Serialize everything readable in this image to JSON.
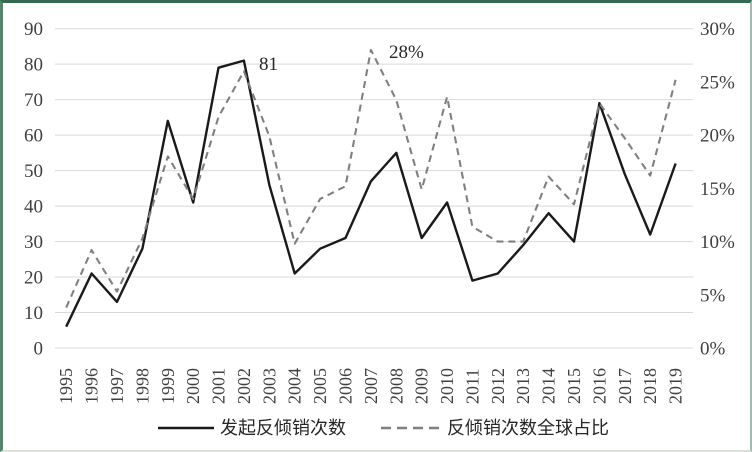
{
  "window": {
    "border_color": "#2f6b51",
    "background": "#ffffff"
  },
  "chart_data": {
    "type": "line",
    "title": "",
    "x_categories": [
      "1995",
      "1996",
      "1997",
      "1998",
      "1999",
      "2000",
      "2001",
      "2002",
      "2003",
      "2004",
      "2005",
      "2006",
      "2007",
      "2008",
      "2009",
      "2010",
      "2011",
      "2012",
      "2013",
      "2014",
      "2015",
      "2016",
      "2017",
      "2018",
      "2019"
    ],
    "series": [
      {
        "name": "发起反倾销次数",
        "axis": "left",
        "line_style": "solid",
        "color": "#1a1a1a",
        "values": [
          6,
          21,
          13,
          28,
          64,
          41,
          79,
          81,
          46,
          21,
          28,
          31,
          47,
          55,
          31,
          41,
          19,
          21,
          29,
          38,
          30,
          69,
          49,
          32,
          52
        ]
      },
      {
        "name": "反倾销次数全球占比",
        "axis": "right",
        "line_style": "dashed",
        "color": "#808080",
        "values_percent": [
          3.8,
          9.2,
          5.3,
          10.3,
          18,
          14,
          21.7,
          26,
          19.9,
          9.8,
          14,
          15.2,
          28,
          23.3,
          14.9,
          23.6,
          11.4,
          10,
          10,
          16.1,
          13.5,
          23,
          19.7,
          16.2,
          25.2
        ]
      }
    ],
    "left_axis": {
      "min": 0,
      "max": 90,
      "step": 10,
      "ticks": [
        "0",
        "10",
        "20",
        "30",
        "40",
        "50",
        "60",
        "70",
        "80",
        "90"
      ]
    },
    "right_axis": {
      "min": 0,
      "max": 30,
      "step": 5,
      "ticks": [
        "0%",
        "5%",
        "10%",
        "15%",
        "20%",
        "25%",
        "30%"
      ]
    },
    "grid": {
      "horizontal": true,
      "vertical": false,
      "color": "#d9d9d9"
    },
    "annotations": [
      {
        "text": "81",
        "year": "2002",
        "series": "发起反倾销次数"
      },
      {
        "text": "28%",
        "year": "2007",
        "series": "反倾销次数全球占比"
      }
    ],
    "legend": {
      "position": "bottom",
      "items": [
        {
          "label": "发起反倾销次数",
          "style": "solid",
          "color": "#1a1a1a"
        },
        {
          "label": "反倾销次数全球占比",
          "style": "dashed",
          "color": "#808080"
        }
      ]
    }
  }
}
